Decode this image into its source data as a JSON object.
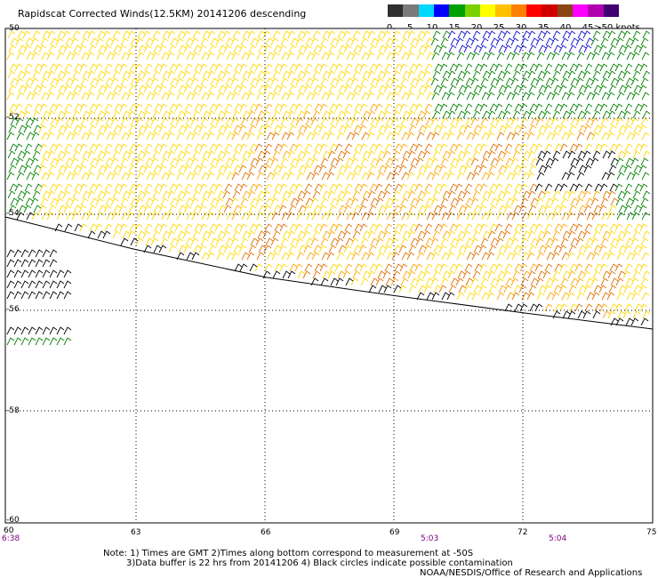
{
  "title": "Rapidscat Corrected Winds(12.5KM) 20141206 descending",
  "colorbar": {
    "labels": [
      "0",
      "5",
      "10",
      "15",
      "20",
      "25",
      "30",
      "35",
      "40",
      "45",
      ">50 knots"
    ],
    "colors": [
      "#303030",
      "#7a7a7a",
      "#00d8ff",
      "#0000ff",
      "#00a000",
      "#7ad000",
      "#ffff00",
      "#ffc000",
      "#ff8000",
      "#ff0000",
      "#d00000",
      "#8b4513",
      "#ff00ff",
      "#b000b0",
      "#400070"
    ]
  },
  "axes": {
    "lat_labels": [
      "-50",
      "-52",
      "-54",
      "-56",
      "-58",
      "-60"
    ],
    "lon_labels": [
      "60",
      "63",
      "66",
      "69",
      "72",
      "75"
    ],
    "time_labels": [
      "6:38",
      "5:03",
      "5:04"
    ]
  },
  "notes": {
    "line1": "Note: 1) Times are GMT 2)Times along bottom correspond to measurement at -50S",
    "line2": "3)Data buffer is 22 hrs from 20141206 4) Black circles indicate possible contamination",
    "line3": "NOAA/NESDIS/Office of Research and Applications"
  },
  "wind_field": {
    "direction": "westerly",
    "dominant_colors": [
      "#ffd700",
      "#ffa500",
      "#ff7f00",
      "#008000",
      "#000000",
      "#0000ff"
    ]
  }
}
